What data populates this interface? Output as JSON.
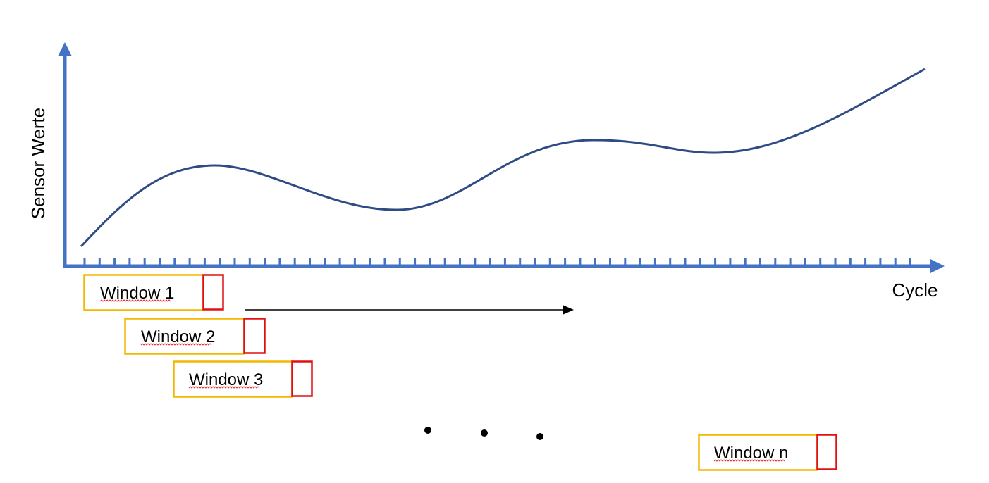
{
  "diagram": {
    "y_axis_label": "Sensor Werte",
    "x_axis_label": "Cycle",
    "windows": [
      {
        "label": "Window 1",
        "squiggle_word": "Window"
      },
      {
        "label": "Window 2",
        "squiggle_word": "Window"
      },
      {
        "label": "Window 3",
        "squiggle_word": "Window"
      },
      {
        "label": "Window n",
        "squiggle_word": "Window"
      }
    ],
    "ellipsis_dots": 3,
    "colors": {
      "axis": "#4472c4",
      "curve": "#2f4b85",
      "window_border": "#f2b800",
      "target_border": "#e01010",
      "arrow": "#000000",
      "dots": "#000000"
    }
  }
}
